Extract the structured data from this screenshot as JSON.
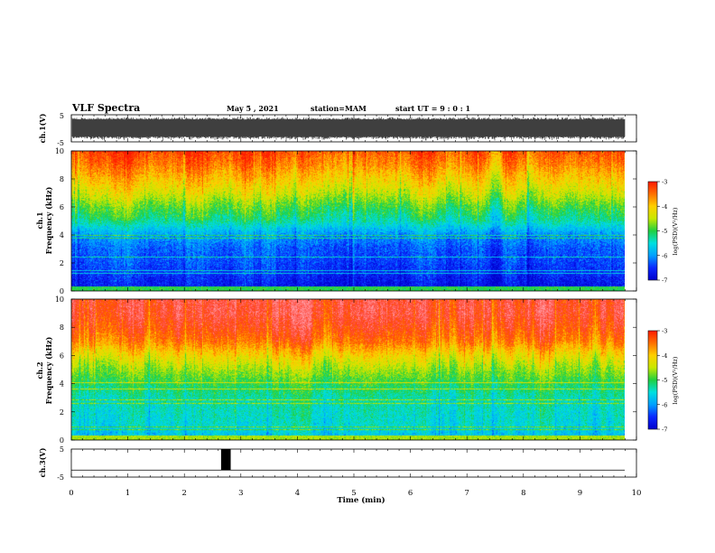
{
  "header": {
    "title": "VLF Spectra",
    "date": "May 5 , 2021",
    "station": "station=MAM",
    "start": "start  UT =  9 : 0  : 1"
  },
  "colors": {
    "colormap": [
      "#000000",
      "#0000cc",
      "#0a28ff",
      "#00a0ff",
      "#00e0e0",
      "#20d040",
      "#c8e800",
      "#ffd000",
      "#ff7000",
      "#ff1a00",
      "#ff9090"
    ],
    "waveform": "#000000"
  },
  "chart_data": [
    {
      "type": "line",
      "name": "ch1-waveform",
      "ylabel": "ch.1(V)",
      "ylim": [
        -5,
        5
      ],
      "yticks": [
        "5",
        "-5"
      ],
      "xlim": [
        0,
        10
      ],
      "description_of_values": "dense noisy waveform spanning approx -4 to 4 V until ~9.8 min"
    },
    {
      "type": "heatmap",
      "name": "ch1-spectrogram",
      "ylabel_line1": "ch.1",
      "ylabel_line2": "Frequency (kHz)",
      "x_unit": "min",
      "y_unit": "kHz",
      "xlim": [
        0,
        10
      ],
      "ylim": [
        0,
        10
      ],
      "yticks": [
        "10",
        "8",
        "6",
        "4",
        "2",
        "0"
      ],
      "data_end_min": 9.8,
      "power_profile_by_freq_khz": [
        [
          0,
          -6.8
        ],
        [
          1,
          -6.6
        ],
        [
          2,
          -6.4
        ],
        [
          3,
          -6.3
        ],
        [
          4,
          -6.0
        ],
        [
          5,
          -5.3
        ],
        [
          6,
          -4.9
        ],
        [
          7,
          -4.4
        ],
        [
          8,
          -4.0
        ],
        [
          9,
          -3.6
        ],
        [
          10,
          -3.3
        ]
      ],
      "colorbar": {
        "label": "log(PSD)(V²/Hz)",
        "range": [
          -7,
          -3
        ],
        "ticks": [
          "-3",
          "-4",
          "-5",
          "-6",
          "-7"
        ]
      }
    },
    {
      "type": "heatmap",
      "name": "ch2-spectrogram",
      "ylabel_line1": "ch.2",
      "ylabel_line2": "Frequency (kHz)",
      "x_unit": "min",
      "y_unit": "kHz",
      "xlim": [
        0,
        10
      ],
      "ylim": [
        0,
        10
      ],
      "yticks": [
        "10",
        "8",
        "6",
        "4",
        "2",
        "0"
      ],
      "data_end_min": 9.8,
      "power_profile_by_freq_khz": [
        [
          0,
          -5.8
        ],
        [
          1,
          -5.5
        ],
        [
          2,
          -5.4
        ],
        [
          3,
          -5.3
        ],
        [
          4,
          -5.0
        ],
        [
          5,
          -4.6
        ],
        [
          6,
          -4.1
        ],
        [
          7,
          -3.5
        ],
        [
          8,
          -3.2
        ],
        [
          9,
          -3.0
        ],
        [
          10,
          -3.0
        ]
      ],
      "colorbar": {
        "label": "log(PSD)(V²/Hz)",
        "range": [
          -7,
          -3
        ],
        "ticks": [
          "-3",
          "-4",
          "-5",
          "-6",
          "-7"
        ]
      }
    },
    {
      "type": "line",
      "name": "ch3-trace",
      "ylabel": "ch.3(V)",
      "ylim": [
        -5,
        5
      ],
      "yticks": [
        "5",
        "-5"
      ],
      "xlim": [
        0,
        10
      ],
      "baseline_v": -2.5,
      "pulse": {
        "x_start_min": 2.65,
        "x_end_min": 2.82,
        "y_top_v": 5,
        "y_bottom_v": -2.5
      }
    }
  ],
  "x_axis": {
    "label": "Time (min)",
    "ticks": [
      "0",
      "1",
      "2",
      "3",
      "4",
      "5",
      "6",
      "7",
      "8",
      "9",
      "10"
    ]
  }
}
